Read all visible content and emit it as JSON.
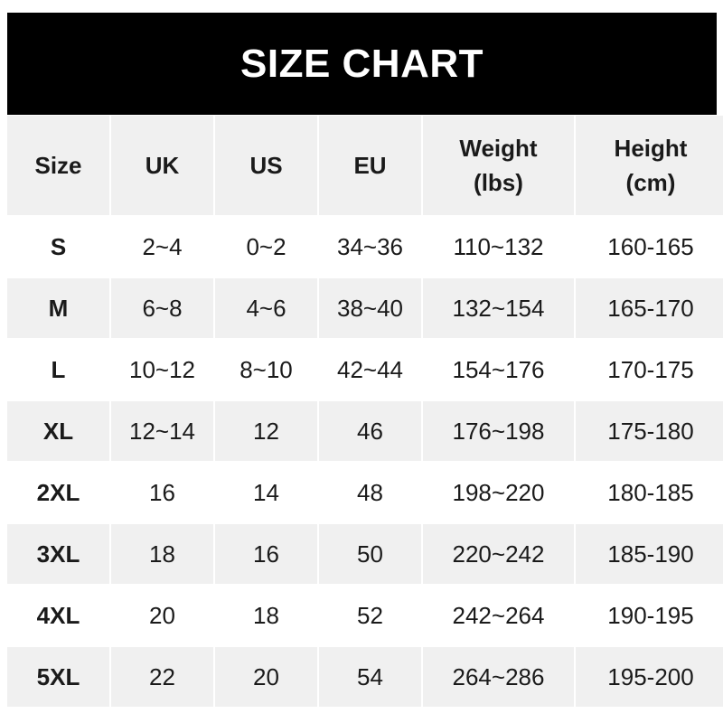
{
  "title": "SIZE CHART",
  "headers": [
    "Size",
    "UK",
    "US",
    "EU",
    "Weight\n(lbs)",
    "Height\n(cm)"
  ],
  "rows": [
    [
      "S",
      "2~4",
      "0~2",
      "34~36",
      "110~132",
      "160-165"
    ],
    [
      "M",
      "6~8",
      "4~6",
      "38~40",
      "132~154",
      "165-170"
    ],
    [
      "L",
      "10~12",
      "8~10",
      "42~44",
      "154~176",
      "170-175"
    ],
    [
      "XL",
      "12~14",
      "12",
      "46",
      "176~198",
      "175-180"
    ],
    [
      "2XL",
      "16",
      "14",
      "48",
      "198~220",
      "180-185"
    ],
    [
      "3XL",
      "18",
      "16",
      "50",
      "220~242",
      "185-190"
    ],
    [
      "4XL",
      "20",
      "18",
      "52",
      "242~264",
      "190-195"
    ],
    [
      "5XL",
      "22",
      "20",
      "54",
      "264~286",
      "195-200"
    ]
  ]
}
